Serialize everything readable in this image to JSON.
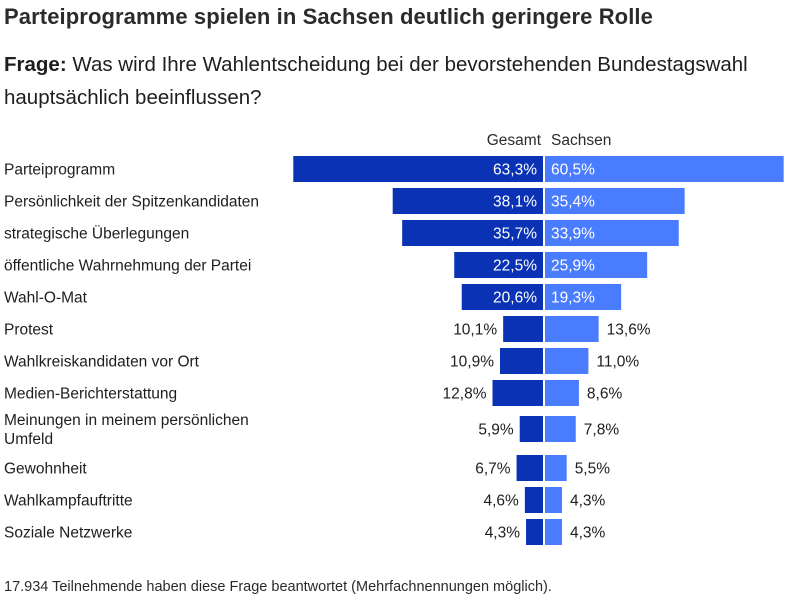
{
  "header": {
    "title": "Parteiprogramme spielen in Sachsen deutlich geringere Rolle",
    "question_label": "Frage:",
    "question_text": "Was wird Ihre Wahlentscheidung bei der bevorstehenden Bundestagswahl hauptsächlich beeinflussen?"
  },
  "footnote": "17.934 Teilnehmende haben diese Frage beantwortet (Mehrfachnennungen möglich).",
  "colors": {
    "gesamt_bar": "#0a32b4",
    "sachsen_bar": "#4a7cff",
    "label_inside": "#ffffff",
    "label_outside": "#1e1e1e"
  },
  "chart_data": {
    "type": "bar",
    "orientation": "horizontal-back-to-back",
    "categories": [
      "Parteiprogramm",
      "Persönlichkeit der Spitzenkandidaten",
      "strategische Überlegungen",
      "öffentliche Wahrnehmung der Partei",
      "Wahl-O-Mat",
      "Protest",
      "Wahlkreiskandidaten vor Ort",
      "Medien-Berichterstattung",
      "Meinungen in meinem persönlichen Umfeld",
      "Gewohnheit",
      "Wahlkampfauftritte",
      "Soziale Netzwerke"
    ],
    "series": [
      {
        "name": "Gesamt",
        "values": [
          63.3,
          38.1,
          35.7,
          22.5,
          20.6,
          10.1,
          10.9,
          12.8,
          5.9,
          6.7,
          4.6,
          4.3
        ],
        "labels": [
          "63,3%",
          "38,1%",
          "35,7%",
          "22,5%",
          "20,6%",
          "10,1%",
          "10,9%",
          "12,8%",
          "5,9%",
          "6,7%",
          "4,6%",
          "4,3%"
        ]
      },
      {
        "name": "Sachsen",
        "values": [
          60.5,
          35.4,
          33.9,
          25.9,
          19.3,
          13.6,
          11.0,
          8.6,
          7.8,
          5.5,
          4.3,
          4.3
        ],
        "labels": [
          "60,5%",
          "35,4%",
          "33,9%",
          "25,9%",
          "19,3%",
          "13,6%",
          "11,0%",
          "8,6%",
          "7,8%",
          "5,5%",
          "4,3%",
          "4,3%"
        ]
      }
    ],
    "unit": "%",
    "grid": false
  }
}
